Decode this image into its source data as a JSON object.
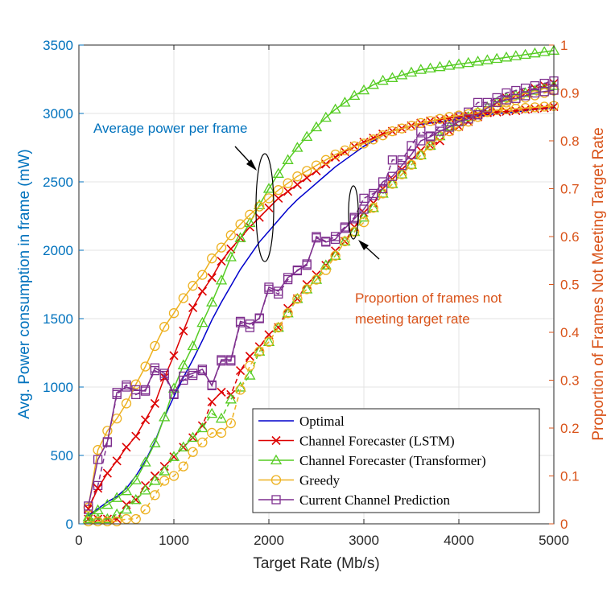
{
  "chart_data": {
    "type": "line",
    "xlabel": "Target Rate (Mb/s)",
    "ylabel_left": "Avg. Power consumption in frame (mW)",
    "ylabel_right": "Proportion of Frames Not Meeting Target Rate",
    "xlim": [
      0,
      5000
    ],
    "ylim_left": [
      0,
      3500
    ],
    "ylim_right": [
      0,
      1
    ],
    "xticks": [
      "0",
      "1000",
      "2000",
      "3000",
      "4000",
      "5000"
    ],
    "yticks_left": [
      "0",
      "500",
      "1000",
      "1500",
      "2000",
      "2500",
      "3000",
      "3500"
    ],
    "yticks_right": [
      "0",
      "0.1",
      "0.2",
      "0.3",
      "0.4",
      "0.5",
      "0.6",
      "0.7",
      "0.8",
      "0.9",
      "1"
    ],
    "grid": true,
    "legend_position": "bottom-right",
    "colors": {
      "left_axis": "#0072BD",
      "right_axis": "#D95319"
    },
    "annotations": [
      {
        "text": "Average power per frame",
        "color": "#0072BD"
      },
      {
        "text": "Proportion of frames not",
        "color": "#D95319"
      },
      {
        "text": "meeting target rate",
        "color": "#D95319"
      }
    ],
    "legend": [
      {
        "name": "Optimal",
        "color": "#0000CC",
        "marker": "none"
      },
      {
        "name": "Channel Forecaster (LSTM)",
        "color": "#DD0000",
        "marker": "x"
      },
      {
        "name": "Channel Forecaster (Transformer)",
        "color": "#55CC22",
        "marker": "triangle"
      },
      {
        "name": "Greedy",
        "color": "#EDB120",
        "marker": "circle"
      },
      {
        "name": "Current Channel Prediction",
        "color": "#7E2F8E",
        "marker": "square"
      }
    ],
    "x": [
      100,
      200,
      300,
      400,
      500,
      600,
      700,
      800,
      900,
      1000,
      1100,
      1200,
      1300,
      1400,
      1500,
      1600,
      1700,
      1800,
      1900,
      2000,
      2100,
      2200,
      2300,
      2400,
      2500,
      2600,
      2700,
      2800,
      2900,
      3000,
      3100,
      3200,
      3300,
      3400,
      3500,
      3600,
      3700,
      3800,
      3900,
      4000,
      4100,
      4200,
      4300,
      4400,
      4500,
      4600,
      4700,
      4800,
      4900,
      5000
    ],
    "power_series": [
      {
        "name": "Optimal",
        "axis": "left",
        "dashed": false,
        "values": [
          60,
          110,
          160,
          200,
          260,
          350,
          460,
          600,
          780,
          930,
          1070,
          1200,
          1340,
          1490,
          1620,
          1740,
          1860,
          1960,
          2060,
          2140,
          2220,
          2300,
          2370,
          2430,
          2490,
          2550,
          2610,
          2660,
          2710,
          2760,
          2800,
          2840,
          2870,
          2890,
          2910,
          2920,
          2930,
          2940,
          2950,
          2960,
          2970,
          2980,
          2990,
          3000,
          3005,
          3010,
          3020,
          3030,
          3035,
          3040
        ]
      },
      {
        "name": "Channel Forecaster (LSTM)",
        "axis": "left",
        "dashed": false,
        "values": [
          110,
          260,
          370,
          460,
          560,
          640,
          760,
          880,
          1070,
          1230,
          1410,
          1580,
          1700,
          1800,
          1920,
          2010,
          2090,
          2170,
          2240,
          2310,
          2380,
          2430,
          2480,
          2530,
          2580,
          2630,
          2680,
          2720,
          2760,
          2790,
          2820,
          2850,
          2870,
          2890,
          2910,
          2930,
          2945,
          2955,
          2965,
          2975,
          2985,
          2995,
          3005,
          3010,
          3015,
          3020,
          3030,
          3035,
          3040,
          3050
        ]
      },
      {
        "name": "Channel Forecaster (Transformer)",
        "axis": "left",
        "dashed": false,
        "values": [
          50,
          100,
          140,
          190,
          240,
          320,
          450,
          590,
          780,
          990,
          1160,
          1300,
          1470,
          1620,
          1780,
          1950,
          2090,
          2200,
          2330,
          2450,
          2560,
          2660,
          2750,
          2830,
          2900,
          2970,
          3030,
          3080,
          3130,
          3170,
          3210,
          3240,
          3260,
          3280,
          3300,
          3320,
          3330,
          3340,
          3350,
          3360,
          3370,
          3380,
          3390,
          3400,
          3410,
          3420,
          3430,
          3440,
          3450,
          3460
        ]
      },
      {
        "name": "Greedy",
        "axis": "left",
        "dashed": false,
        "values": [
          120,
          540,
          680,
          770,
          880,
          1020,
          1150,
          1300,
          1440,
          1540,
          1650,
          1740,
          1820,
          1940,
          2020,
          2110,
          2190,
          2260,
          2320,
          2380,
          2440,
          2490,
          2540,
          2580,
          2620,
          2660,
          2700,
          2730,
          2760,
          2780,
          2810,
          2840,
          2870,
          2890,
          2910,
          2930,
          2945,
          2960,
          2975,
          2985,
          2995,
          3005,
          3015,
          3025,
          3030,
          3035,
          3040,
          3045,
          3050,
          3055
        ]
      },
      {
        "name": "Current Channel Prediction",
        "axis": "left",
        "dashed": false,
        "values": [
          130,
          470,
          600,
          960,
          1000,
          980,
          970,
          1140,
          1100,
          950,
          1080,
          1100,
          1130,
          1010,
          1200,
          1200,
          1480,
          1460,
          1500,
          1730,
          1700,
          1800,
          1850,
          1900,
          2090,
          2060,
          2080,
          2160,
          2230,
          2300,
          2400,
          2500,
          2540,
          2620,
          2700,
          2800,
          2830,
          2870,
          2900,
          2940,
          2960,
          2990,
          3040,
          3080,
          3100,
          3110,
          3130,
          3150,
          3160,
          3170
        ]
      }
    ],
    "proportion_series": [
      {
        "name": "Channel Forecaster (LSTM)",
        "axis": "right",
        "dashed": true,
        "values": [
          0.01,
          0.01,
          0.01,
          0.01,
          0.04,
          0.05,
          0.08,
          0.1,
          0.12,
          0.14,
          0.16,
          0.18,
          0.205,
          0.255,
          0.275,
          0.27,
          0.32,
          0.35,
          0.37,
          0.395,
          0.41,
          0.45,
          0.47,
          0.5,
          0.52,
          0.54,
          0.57,
          0.59,
          0.62,
          0.65,
          0.67,
          0.7,
          0.72,
          0.74,
          0.76,
          0.78,
          0.79,
          0.8,
          0.82,
          0.83,
          0.84,
          0.85,
          0.86,
          0.88,
          0.89,
          0.895,
          0.9,
          0.91,
          0.915,
          0.92
        ]
      },
      {
        "name": "Channel Forecaster (Transformer)",
        "axis": "right",
        "dashed": true,
        "values": [
          0.01,
          0.01,
          0.01,
          0.02,
          0.03,
          0.05,
          0.07,
          0.09,
          0.11,
          0.14,
          0.16,
          0.18,
          0.2,
          0.23,
          0.22,
          0.26,
          0.285,
          0.31,
          0.36,
          0.38,
          0.41,
          0.44,
          0.47,
          0.49,
          0.51,
          0.54,
          0.56,
          0.59,
          0.61,
          0.64,
          0.66,
          0.69,
          0.71,
          0.73,
          0.75,
          0.77,
          0.79,
          0.81,
          0.83,
          0.84,
          0.85,
          0.86,
          0.87,
          0.88,
          0.89,
          0.895,
          0.9,
          0.905,
          0.91,
          0.915
        ]
      },
      {
        "name": "Greedy",
        "axis": "right",
        "dashed": true,
        "values": [
          0.005,
          0.005,
          0.005,
          0.005,
          0.01,
          0.01,
          0.03,
          0.06,
          0.09,
          0.1,
          0.12,
          0.15,
          0.17,
          0.19,
          0.19,
          0.21,
          0.28,
          0.33,
          0.36,
          0.38,
          0.41,
          0.44,
          0.47,
          0.49,
          0.51,
          0.53,
          0.56,
          0.59,
          0.61,
          0.63,
          0.66,
          0.69,
          0.71,
          0.73,
          0.75,
          0.77,
          0.79,
          0.81,
          0.82,
          0.83,
          0.84,
          0.85,
          0.86,
          0.87,
          0.88,
          0.885,
          0.89,
          0.895,
          0.9,
          0.905
        ]
      },
      {
        "name": "Current Channel Prediction",
        "axis": "right",
        "dashed": true,
        "values": [
          0.03,
          0.08,
          0.17,
          0.27,
          0.29,
          0.27,
          0.28,
          0.32,
          0.31,
          0.27,
          0.3,
          0.31,
          0.32,
          0.29,
          0.34,
          0.34,
          0.42,
          0.41,
          0.43,
          0.49,
          0.48,
          0.51,
          0.53,
          0.54,
          0.6,
          0.59,
          0.6,
          0.62,
          0.64,
          0.68,
          0.69,
          0.7,
          0.76,
          0.76,
          0.79,
          0.82,
          0.81,
          0.83,
          0.84,
          0.85,
          0.86,
          0.88,
          0.88,
          0.89,
          0.9,
          0.905,
          0.91,
          0.915,
          0.92,
          0.925
        ]
      }
    ]
  }
}
